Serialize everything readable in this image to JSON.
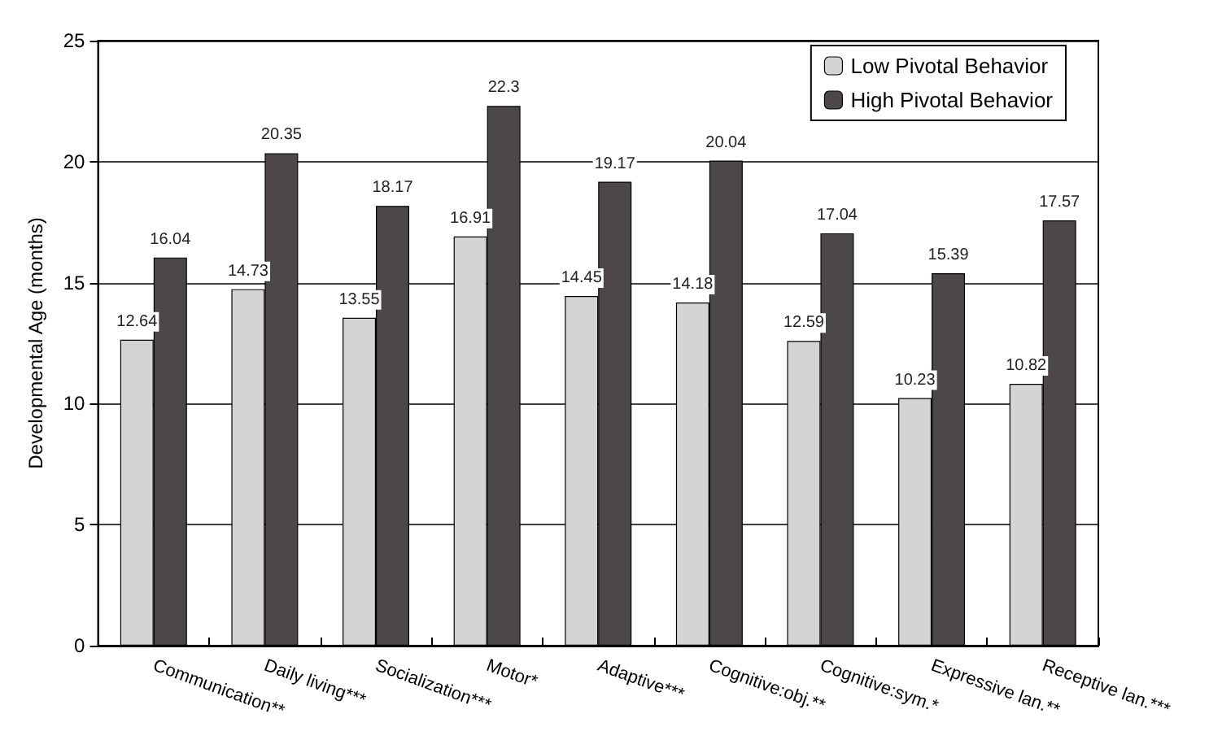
{
  "chart_data": {
    "type": "bar",
    "ylabel": "Developmental Age (months)",
    "categories": [
      "Communication**",
      "Daily living***",
      "Socialization***",
      "Motor*",
      "Adaptive***",
      "Cognitive:obj.**",
      "Cognitive:sym.*",
      "Expressive lan.**",
      "Receptive lan.***"
    ],
    "series": [
      {
        "name": "Low Pivotal Behavior",
        "color": "#d4d4d4",
        "values": [
          12.64,
          14.73,
          13.55,
          16.91,
          14.45,
          14.18,
          12.59,
          10.23,
          10.82
        ]
      },
      {
        "name": "High Pivotal Behavior",
        "color": "#4d4848",
        "values": [
          16.04,
          20.35,
          18.17,
          22.3,
          19.17,
          20.04,
          17.04,
          15.39,
          17.57
        ]
      }
    ],
    "ylim": [
      0,
      25
    ],
    "yticks": [
      0,
      5,
      10,
      15,
      20,
      25
    ],
    "grid": "y",
    "legend": "top right",
    "data_labels": true
  }
}
